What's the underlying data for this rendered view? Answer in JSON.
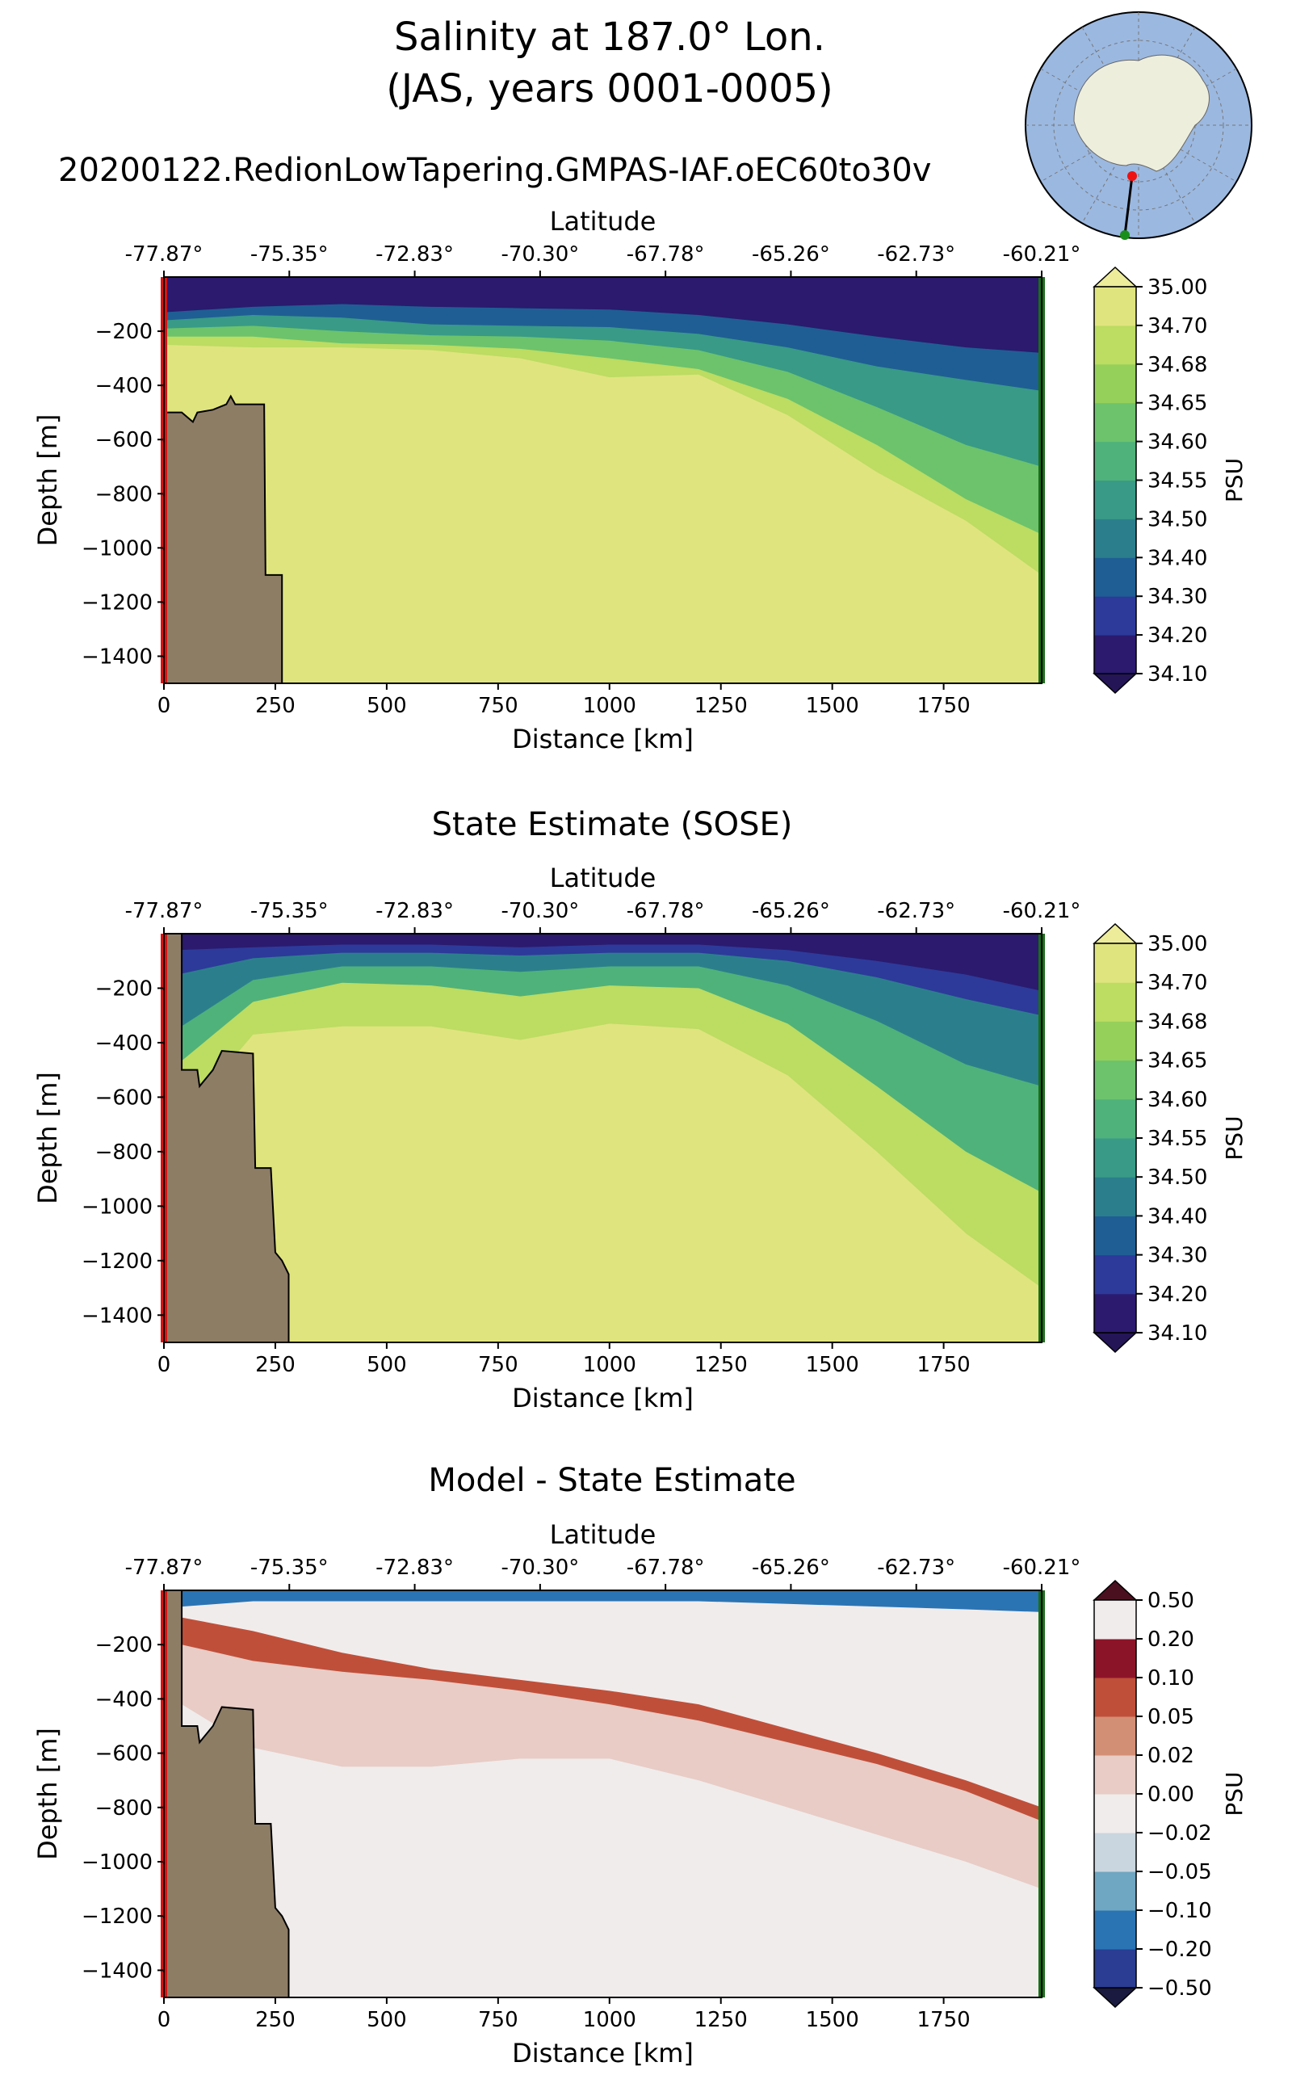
{
  "figure": {
    "title_line1": "Salinity at 187.0° Lon.",
    "title_line2": "(JAS, years 0001-0005)",
    "run_name": "20200122.RedionLowTapering.GMPAS-IAF.oEC60to30v"
  },
  "chart_data": [
    {
      "type": "heatmap",
      "panel": "model",
      "title": "",
      "xlabel": "Distance [km]",
      "ylabel": "Depth [m]",
      "top_xlabel": "Latitude",
      "xticks": [
        "0",
        "250",
        "500",
        "750",
        "1000",
        "1250",
        "1500",
        "1750"
      ],
      "xtick_values": [
        0,
        250,
        500,
        750,
        1000,
        1250,
        1500,
        1750
      ],
      "top_xticks": [
        "-77.87°",
        "-75.35°",
        "-72.83°",
        "-70.30°",
        "-67.78°",
        "-65.26°",
        "-62.73°",
        "-60.21°"
      ],
      "yticks": [
        "−200",
        "−400",
        "−600",
        "−800",
        "−1000",
        "−1200",
        "−1400"
      ],
      "ytick_values": [
        -200,
        -400,
        -600,
        -800,
        -1000,
        -1200,
        -1400
      ],
      "xlim": [
        0,
        1970
      ],
      "ylim": [
        -1500,
        0
      ],
      "colorbar_label": "PSU",
      "colorbar_ticks": [
        "34.10",
        "34.20",
        "34.30",
        "34.40",
        "34.50",
        "34.55",
        "34.60",
        "34.65",
        "34.68",
        "34.70",
        "35.00"
      ],
      "colorbar_colors": [
        "#2b1a6e",
        "#2d3a9a",
        "#1f5e94",
        "#2b7f8c",
        "#389a87",
        "#4fb27a",
        "#6cc36c",
        "#95d05a",
        "#bcdc62",
        "#e0e47e"
      ],
      "colorbar_extend": "both",
      "field_description": "fresh surface layer ~34.1 above ~34.7 deep water",
      "contours": [
        {
          "color": "#2b1a6e",
          "depth_km": [
            0,
            200,
            400,
            600,
            800,
            1000,
            1200,
            1400,
            1600,
            1800,
            1970
          ],
          "depth_m": [
            -130,
            -110,
            -100,
            -110,
            -115,
            -120,
            -140,
            -175,
            -220,
            -260,
            -280
          ]
        },
        {
          "color": "#1f5e94",
          "depth_km": [
            0,
            200,
            400,
            600,
            800,
            1000,
            1200,
            1400,
            1600,
            1800,
            1970
          ],
          "depth_m": [
            -160,
            -140,
            -150,
            -175,
            -180,
            -185,
            -210,
            -260,
            -330,
            -380,
            -420
          ]
        },
        {
          "color": "#389a87",
          "depth_km": [
            0,
            200,
            400,
            600,
            800,
            1000,
            1200,
            1400,
            1600,
            1800,
            1970
          ],
          "depth_m": [
            -190,
            -180,
            -200,
            -215,
            -220,
            -235,
            -270,
            -350,
            -480,
            -620,
            -700
          ]
        },
        {
          "color": "#6cc36c",
          "depth_km": [
            0,
            200,
            400,
            600,
            800,
            1000,
            1200,
            1400,
            1600,
            1800,
            1970
          ],
          "depth_m": [
            -220,
            -220,
            -245,
            -250,
            -265,
            -300,
            -340,
            -450,
            -620,
            -820,
            -950
          ]
        },
        {
          "color": "#bcdc62",
          "depth_km": [
            0,
            200,
            400,
            600,
            800,
            1000,
            1200,
            1400,
            1600,
            1800,
            1970
          ],
          "depth_m": [
            -250,
            -260,
            -260,
            -270,
            -300,
            -370,
            -360,
            -510,
            -720,
            -900,
            -1100
          ]
        }
      ],
      "bathymetry_km": [
        0,
        0,
        40,
        65,
        75,
        110,
        140,
        150,
        160,
        225,
        228,
        265,
        265
      ],
      "bathymetry_m": [
        -1500,
        -500,
        -500,
        -535,
        -500,
        -490,
        -470,
        -440,
        -470,
        -470,
        -1100,
        -1100,
        -1500
      ]
    },
    {
      "type": "heatmap",
      "panel": "sose",
      "title": "State Estimate (SOSE)",
      "xlabel": "Distance [km]",
      "ylabel": "Depth [m]",
      "top_xlabel": "Latitude",
      "xticks": [
        "0",
        "250",
        "500",
        "750",
        "1000",
        "1250",
        "1500",
        "1750"
      ],
      "xtick_values": [
        0,
        250,
        500,
        750,
        1000,
        1250,
        1500,
        1750
      ],
      "top_xticks": [
        "-77.87°",
        "-75.35°",
        "-72.83°",
        "-70.30°",
        "-67.78°",
        "-65.26°",
        "-62.73°",
        "-60.21°"
      ],
      "yticks": [
        "−200",
        "−400",
        "−600",
        "−800",
        "−1000",
        "−1200",
        "−1400"
      ],
      "ytick_values": [
        -200,
        -400,
        -600,
        -800,
        -1000,
        -1200,
        -1400
      ],
      "xlim": [
        0,
        1970
      ],
      "ylim": [
        -1500,
        0
      ],
      "colorbar_label": "PSU",
      "colorbar_ticks": [
        "34.10",
        "34.20",
        "34.30",
        "34.40",
        "34.50",
        "34.55",
        "34.60",
        "34.65",
        "34.68",
        "34.70",
        "35.00"
      ],
      "colorbar_colors": [
        "#2b1a6e",
        "#2d3a9a",
        "#1f5e94",
        "#2b7f8c",
        "#389a87",
        "#4fb27a",
        "#6cc36c",
        "#95d05a",
        "#bcdc62",
        "#e0e47e"
      ],
      "colorbar_extend": "both",
      "field_description": "fresh surface layer ~34.1 over ~34.7 deep water, deeper transition toward north",
      "contours": [
        {
          "color": "#2b1a6e",
          "depth_km": [
            30,
            200,
            400,
            600,
            800,
            1000,
            1200,
            1400,
            1600,
            1800,
            1970
          ],
          "depth_m": [
            -60,
            -50,
            -40,
            -40,
            -50,
            -40,
            -40,
            -60,
            -100,
            -150,
            -210
          ]
        },
        {
          "color": "#2d3a9a",
          "depth_km": [
            30,
            200,
            400,
            600,
            800,
            1000,
            1200,
            1400,
            1600,
            1800,
            1970
          ],
          "depth_m": [
            -150,
            -90,
            -70,
            -70,
            -80,
            -70,
            -70,
            -100,
            -160,
            -240,
            -300
          ]
        },
        {
          "color": "#2b7f8c",
          "depth_km": [
            30,
            200,
            400,
            600,
            800,
            1000,
            1200,
            1400,
            1600,
            1800,
            1970
          ],
          "depth_m": [
            -350,
            -170,
            -120,
            -120,
            -140,
            -120,
            -120,
            -190,
            -320,
            -480,
            -560
          ]
        },
        {
          "color": "#4fb27a",
          "depth_km": [
            30,
            200,
            400,
            600,
            800,
            1000,
            1200,
            1400,
            1600,
            1800,
            1970
          ],
          "depth_m": [
            -480,
            -250,
            -180,
            -190,
            -230,
            -190,
            -200,
            -330,
            -560,
            -800,
            -950
          ]
        },
        {
          "color": "#bcdc62",
          "depth_km": [
            30,
            200,
            400,
            600,
            800,
            1000,
            1200,
            1400,
            1600,
            1800,
            1970
          ],
          "depth_m": [
            -700,
            -370,
            -340,
            -340,
            -390,
            -330,
            -350,
            -520,
            -800,
            -1100,
            -1300
          ]
        }
      ],
      "bathymetry_km": [
        0,
        0,
        40,
        40,
        75,
        80,
        110,
        130,
        200,
        205,
        240,
        250,
        265,
        280,
        280
      ],
      "bathymetry_m": [
        -1500,
        0,
        0,
        -500,
        -500,
        -560,
        -500,
        -430,
        -440,
        -860,
        -860,
        -1170,
        -1200,
        -1250,
        -1500
      ]
    },
    {
      "type": "heatmap",
      "panel": "difference",
      "title": "Model - State Estimate",
      "xlabel": "Distance [km]",
      "ylabel": "Depth [m]",
      "top_xlabel": "Latitude",
      "xticks": [
        "0",
        "250",
        "500",
        "750",
        "1000",
        "1250",
        "1500",
        "1750"
      ],
      "xtick_values": [
        0,
        250,
        500,
        750,
        1000,
        1250,
        1500,
        1750
      ],
      "top_xticks": [
        "-77.87°",
        "-75.35°",
        "-72.83°",
        "-70.30°",
        "-67.78°",
        "-65.26°",
        "-62.73°",
        "-60.21°"
      ],
      "yticks": [
        "−200",
        "−400",
        "−600",
        "−800",
        "−1000",
        "−1200",
        "−1400"
      ],
      "ytick_values": [
        -200,
        -400,
        -600,
        -800,
        -1000,
        -1200,
        -1400
      ],
      "xlim": [
        0,
        1970
      ],
      "ylim": [
        -1500,
        0
      ],
      "colorbar_label": "PSU",
      "colorbar_ticks": [
        "−0.50",
        "−0.20",
        "−0.10",
        "−0.05",
        "−0.02",
        "0.00",
        "0.02",
        "0.05",
        "0.10",
        "0.20",
        "0.50"
      ],
      "colorbar_colors": [
        "#2a3d92",
        "#2a74b4",
        "#6fa6c1",
        "#c9d6df",
        "#f0ecec",
        "#e8ccc5",
        "#d38f76",
        "#c04f3a",
        "#8c1428",
        "#f0ecec"
      ],
      "colorbar_extend": "both",
      "field_description": "negative difference near surface, positive 0.05-0.20 below",
      "contours": [
        {
          "color": "#2a74b4",
          "depth_km": [
            40,
            200,
            400,
            600,
            800,
            1000,
            1200,
            1400,
            1600,
            1800,
            1970
          ],
          "depth_m": [
            -60,
            -40,
            -40,
            -40,
            -40,
            -40,
            -40,
            -50,
            -60,
            -70,
            -80
          ]
        },
        {
          "color": "#f0ecec",
          "depth_km": [
            40,
            200,
            400,
            600,
            800,
            1000,
            1200,
            1400,
            1600,
            1800,
            1970
          ],
          "depth_m": [
            -100,
            -150,
            -230,
            -290,
            -330,
            -370,
            -420,
            -510,
            -600,
            -700,
            -800
          ]
        },
        {
          "color": "#c04f3a",
          "depth_km": [
            40,
            200,
            400,
            600,
            800,
            1000,
            1200,
            1400,
            1600,
            1800,
            1970
          ],
          "depth_m": [
            -200,
            -260,
            -300,
            -330,
            -370,
            -420,
            -480,
            -560,
            -640,
            -740,
            -850
          ]
        },
        {
          "color": "#e8ccc5",
          "depth_km": [
            40,
            200,
            400,
            600,
            800,
            1000,
            1200,
            1400,
            1600,
            1800,
            1970
          ],
          "depth_m": [
            -420,
            -580,
            -650,
            -650,
            -620,
            -620,
            -700,
            -800,
            -900,
            -1000,
            -1100
          ]
        }
      ],
      "bathymetry_km": [
        0,
        0,
        40,
        40,
        75,
        80,
        110,
        130,
        200,
        205,
        240,
        250,
        265,
        280,
        280
      ],
      "bathymetry_m": [
        -1500,
        0,
        0,
        -500,
        -500,
        -560,
        -500,
        -430,
        -440,
        -860,
        -860,
        -1170,
        -1200,
        -1250,
        -1500
      ]
    }
  ],
  "inset_map": {
    "land_color": "#eeeedd",
    "ocean_color": "#9bb8e0",
    "transect_start": "red",
    "transect_end": "green"
  }
}
